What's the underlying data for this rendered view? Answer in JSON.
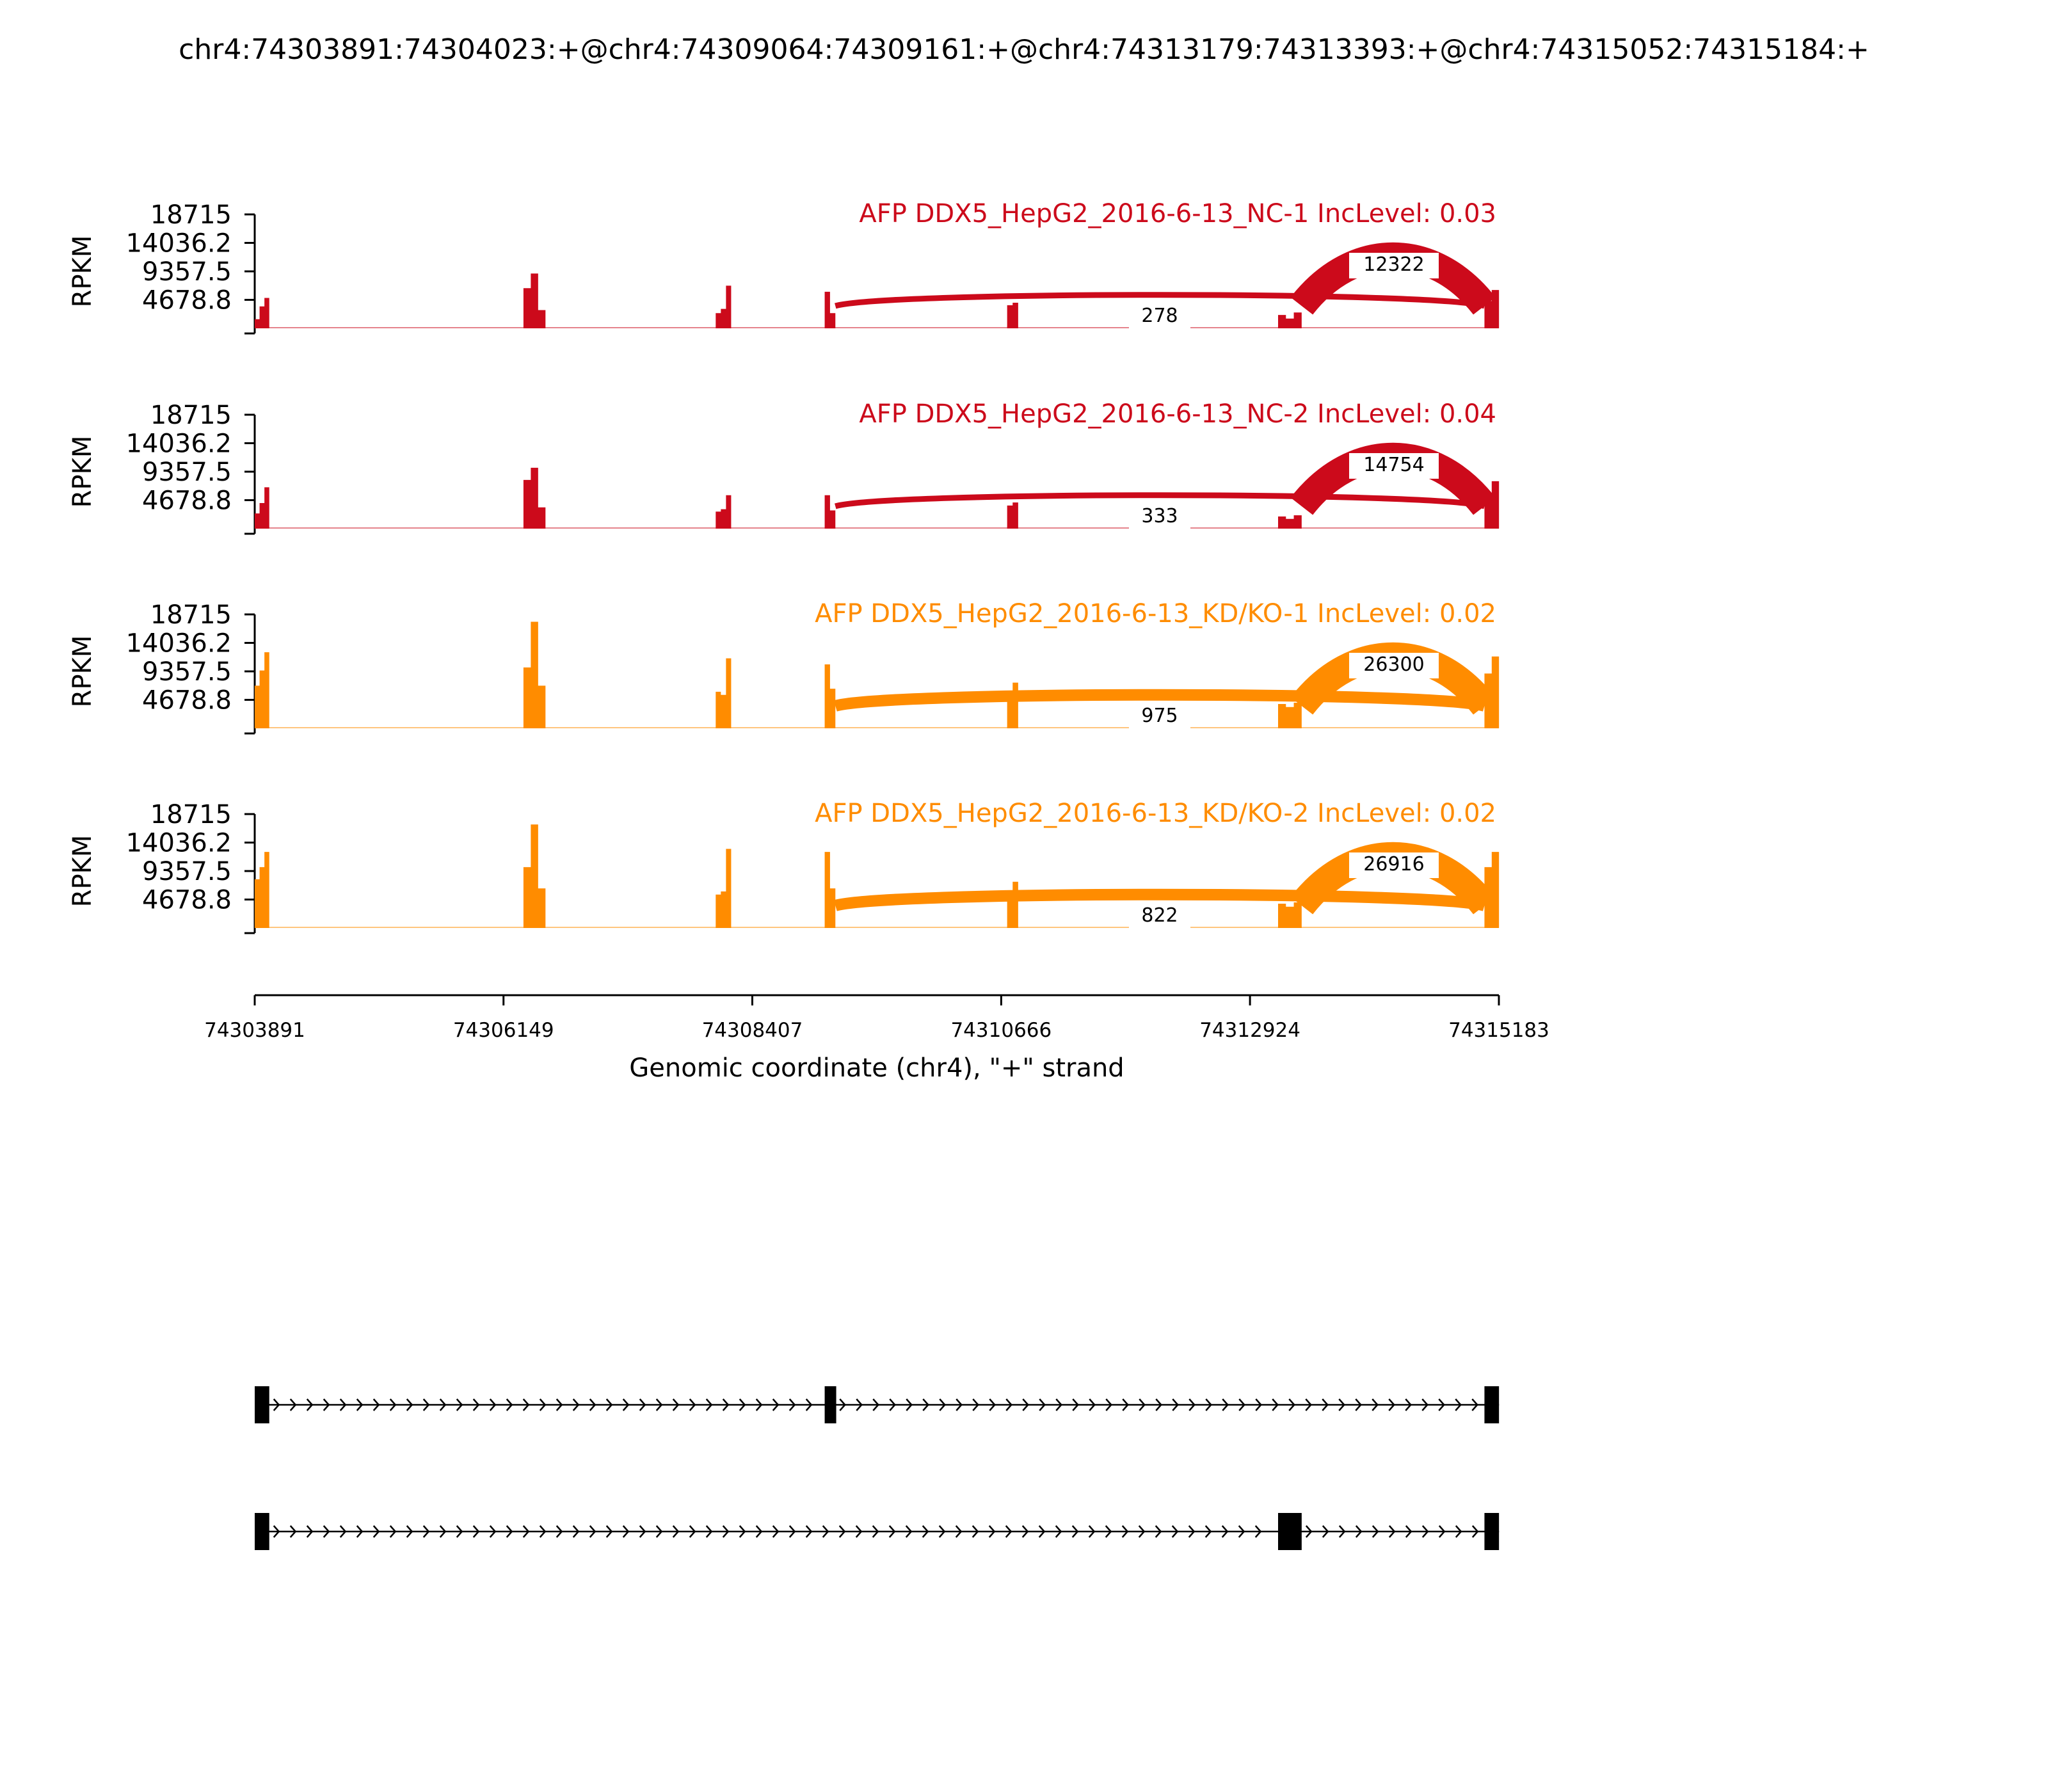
{
  "title": "chr4:74303891:74304023:+@chr4:74309064:74309161:+@chr4:74313179:74313393:+@chr4:74315052:74315184:+",
  "chart_data": {
    "type": "sashimi",
    "xlim": [
      74303891,
      74315183
    ],
    "x_ticks": [
      "74303891",
      "74306149",
      "74308407",
      "74310666",
      "74312924",
      "74315183"
    ],
    "xlabel": "Genomic coordinate (chr4), \"+\" strand",
    "ylabel": "RPKM",
    "ylim": [
      0,
      18715
    ],
    "y_ticks": [
      "18715",
      "14036.2",
      "9357.5",
      "4678.8"
    ],
    "colors": {
      "NC": "#cc0a1b",
      "KD": "#ff8c00"
    },
    "exons": [
      {
        "start": 74303891,
        "end": 74304023
      },
      {
        "start": 74306330,
        "end": 74306530
      },
      {
        "start": 74308075,
        "end": 74308215
      },
      {
        "start": 74309064,
        "end": 74309161
      },
      {
        "start": 74310720,
        "end": 74310820
      },
      {
        "start": 74313179,
        "end": 74313393
      },
      {
        "start": 74315052,
        "end": 74315184
      }
    ],
    "samples": [
      {
        "name": "AFP DDX5_HepG2_2016-6-13_NC-1 IncLevel: 0.03",
        "group": "NC",
        "coverage": [
          [
            1500,
            3600,
            5000
          ],
          [
            6600,
            9000,
            3000
          ],
          [
            2500,
            3200,
            7000
          ],
          [
            6000,
            2500
          ],
          [
            3800,
            4200
          ],
          [
            2200,
            1600,
            2600
          ],
          [
            4500,
            6300
          ]
        ],
        "junctions": [
          {
            "start": 74309161,
            "end": 74315052,
            "count": "278"
          },
          {
            "start": 74313393,
            "end": 74315052,
            "count": "12322"
          }
        ]
      },
      {
        "name": "AFP DDX5_HepG2_2016-6-13_NC-2 IncLevel: 0.04",
        "group": "NC",
        "coverage": [
          [
            2500,
            4200,
            6800
          ],
          [
            8000,
            10000,
            3500
          ],
          [
            2800,
            3200,
            5500
          ],
          [
            5500,
            3000
          ],
          [
            3800,
            4300
          ],
          [
            2000,
            1600,
            2200
          ],
          [
            5200,
            7800
          ]
        ],
        "junctions": [
          {
            "start": 74309161,
            "end": 74315052,
            "count": "333"
          },
          {
            "start": 74313393,
            "end": 74315052,
            "count": "14754"
          }
        ]
      },
      {
        "name": "AFP DDX5_HepG2_2016-6-13_KD/KO-1 IncLevel: 0.02",
        "group": "KD",
        "coverage": [
          [
            7000,
            9500,
            12500
          ],
          [
            10000,
            17500,
            7000
          ],
          [
            6000,
            5500,
            11500
          ],
          [
            10500,
            6500
          ],
          [
            5000,
            7500
          ],
          [
            4000,
            3500,
            4200
          ],
          [
            9000,
            11800
          ]
        ],
        "junctions": [
          {
            "start": 74309161,
            "end": 74315052,
            "count": "975"
          },
          {
            "start": 74313393,
            "end": 74315052,
            "count": "26300"
          }
        ]
      },
      {
        "name": "AFP DDX5_HepG2_2016-6-13_KD/KO-2 IncLevel: 0.02",
        "group": "KD",
        "coverage": [
          [
            8000,
            10000,
            12500
          ],
          [
            10000,
            17000,
            6500
          ],
          [
            5500,
            6000,
            13000
          ],
          [
            12500,
            6500
          ],
          [
            6000,
            7600
          ],
          [
            4000,
            3500,
            4200
          ],
          [
            10000,
            12500
          ]
        ],
        "junctions": [
          {
            "start": 74309161,
            "end": 74315052,
            "count": "822"
          },
          {
            "start": 74313393,
            "end": 74315052,
            "count": "26916"
          }
        ]
      }
    ],
    "isoforms": [
      {
        "exons": [
          [
            74303891,
            74304023
          ],
          [
            74309064,
            74309161
          ],
          [
            74315052,
            74315184
          ]
        ]
      },
      {
        "exons": [
          [
            74303891,
            74304023
          ],
          [
            74313179,
            74313393
          ],
          [
            74315052,
            74315184
          ]
        ]
      }
    ]
  }
}
